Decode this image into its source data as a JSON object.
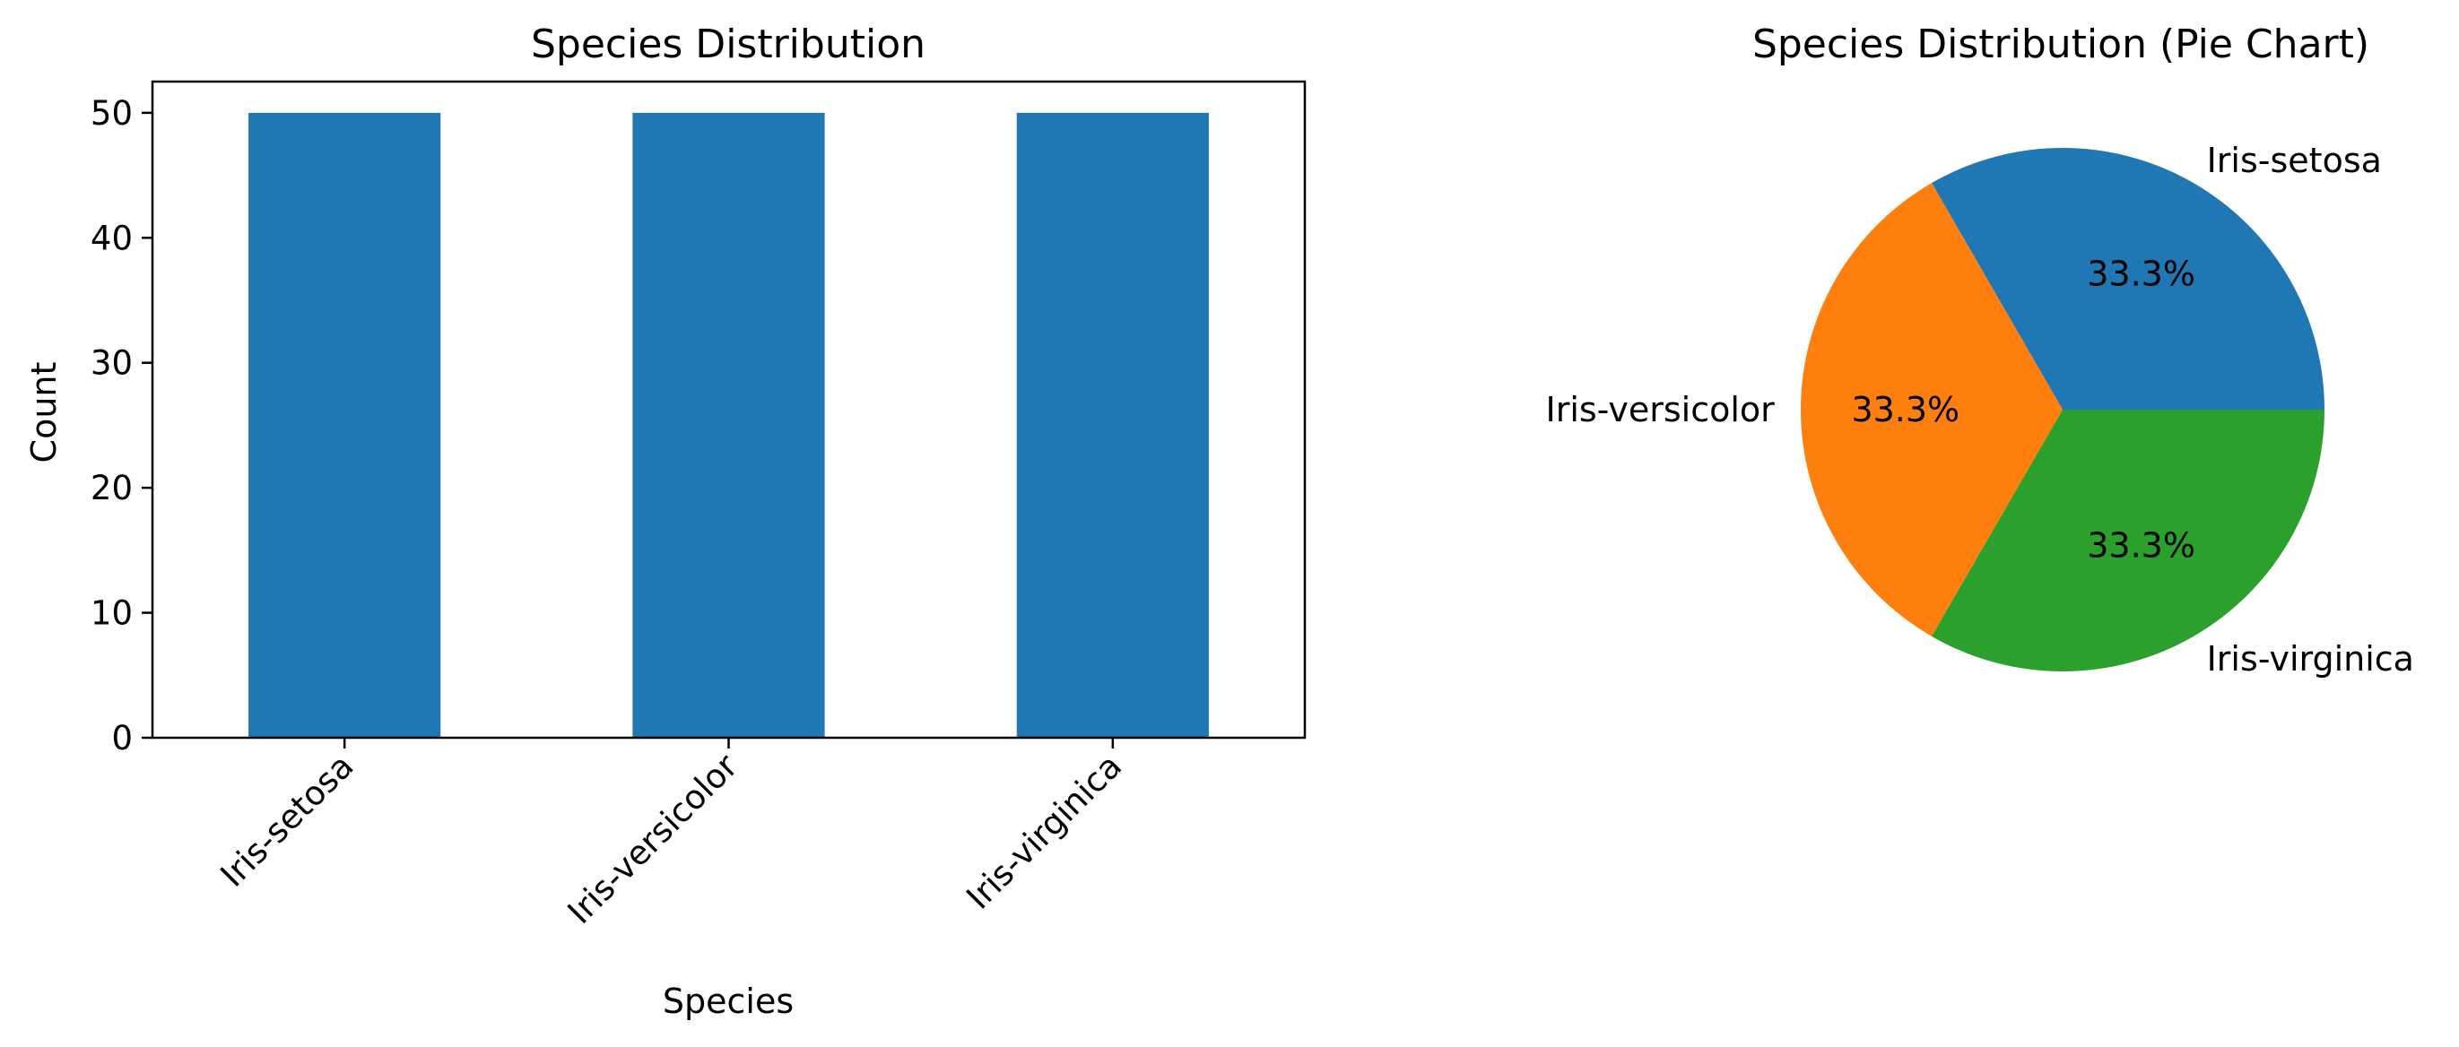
{
  "chart_data": [
    {
      "type": "bar",
      "title": "Species Distribution",
      "xlabel": "Species",
      "ylabel": "Count",
      "categories": [
        "Iris-setosa",
        "Iris-versicolor",
        "Iris-virginica"
      ],
      "values": [
        50,
        50,
        50
      ],
      "ylim": [
        0,
        52.5
      ],
      "yticks": [
        0,
        10,
        20,
        30,
        40,
        50
      ],
      "ytick_labels": [
        "0",
        "10",
        "20",
        "30",
        "40",
        "50"
      ],
      "xtick_rotation": 45,
      "grid": false,
      "color": "#1f77b4"
    },
    {
      "type": "pie",
      "title": "Species Distribution (Pie Chart)",
      "labels": [
        "Iris-setosa",
        "Iris-versicolor",
        "Iris-virginica"
      ],
      "values": [
        50,
        50,
        50
      ],
      "percent_labels": [
        "33.3%",
        "33.3%",
        "33.3%"
      ],
      "colors": [
        "#1f77b4",
        "#ff7f0e",
        "#2ca02c"
      ],
      "start_angle": 0,
      "direction": "counterclockwise"
    }
  ]
}
